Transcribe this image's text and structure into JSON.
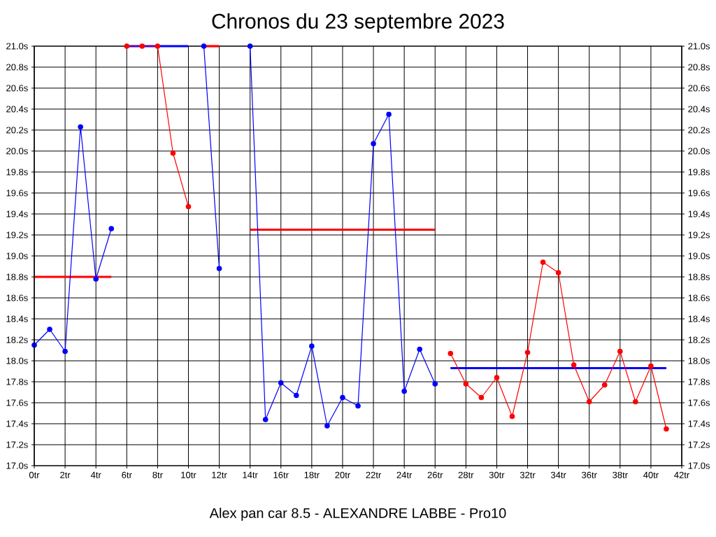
{
  "chart_data": {
    "type": "line",
    "title": "Chronos du 23 septembre 2023",
    "xlabel": "Alex pan car 8.5 - ALEXANDRE LABBE - Pro10",
    "xlim": [
      0,
      42
    ],
    "xticks": [
      {
        "value": 0,
        "label": "0tr"
      },
      {
        "value": 2,
        "label": "2tr"
      },
      {
        "value": 4,
        "label": "4tr"
      },
      {
        "value": 6,
        "label": "6tr"
      },
      {
        "value": 8,
        "label": "8tr"
      },
      {
        "value": 10,
        "label": "10tr"
      },
      {
        "value": 12,
        "label": "12tr"
      },
      {
        "value": 14,
        "label": "14tr"
      },
      {
        "value": 16,
        "label": "16tr"
      },
      {
        "value": 18,
        "label": "18tr"
      },
      {
        "value": 20,
        "label": "20tr"
      },
      {
        "value": 22,
        "label": "22tr"
      },
      {
        "value": 24,
        "label": "24tr"
      },
      {
        "value": 26,
        "label": "26tr"
      },
      {
        "value": 28,
        "label": "28tr"
      },
      {
        "value": 30,
        "label": "30tr"
      },
      {
        "value": 32,
        "label": "32tr"
      },
      {
        "value": 34,
        "label": "34tr"
      },
      {
        "value": 36,
        "label": "36tr"
      },
      {
        "value": 38,
        "label": "38tr"
      },
      {
        "value": 40,
        "label": "40tr"
      },
      {
        "value": 42,
        "label": "42tr"
      }
    ],
    "ylim": [
      17,
      21
    ],
    "yticks": [
      {
        "value": 17,
        "label": "17.0s"
      },
      {
        "value": 17.2,
        "label": "17.2s"
      },
      {
        "value": 17.4,
        "label": "17.4s"
      },
      {
        "value": 17.6,
        "label": "17.6s"
      },
      {
        "value": 17.8,
        "label": "17.8s"
      },
      {
        "value": 18,
        "label": "18.0s"
      },
      {
        "value": 18.2,
        "label": "18.2s"
      },
      {
        "value": 18.4,
        "label": "18.4s"
      },
      {
        "value": 18.6,
        "label": "18.6s"
      },
      {
        "value": 18.8,
        "label": "18.8s"
      },
      {
        "value": 19,
        "label": "19.0s"
      },
      {
        "value": 19.2,
        "label": "19.2s"
      },
      {
        "value": 19.4,
        "label": "19.4s"
      },
      {
        "value": 19.6,
        "label": "19.6s"
      },
      {
        "value": 19.8,
        "label": "19.8s"
      },
      {
        "value": 20,
        "label": "20.0s"
      },
      {
        "value": 20.2,
        "label": "20.2s"
      },
      {
        "value": 20.4,
        "label": "20.4s"
      },
      {
        "value": 20.6,
        "label": "20.6s"
      },
      {
        "value": 20.8,
        "label": "20.8s"
      },
      {
        "value": 21,
        "label": "21.0s"
      }
    ],
    "y2lim": [
      17,
      21
    ],
    "y2ticks": [
      {
        "value": 17,
        "label": "17.0s"
      },
      {
        "value": 17.2,
        "label": "17.2s"
      },
      {
        "value": 17.4,
        "label": "17.4s"
      },
      {
        "value": 17.6,
        "label": "17.6s"
      },
      {
        "value": 17.8,
        "label": "17.8s"
      },
      {
        "value": 18,
        "label": "18.0s"
      },
      {
        "value": 18.2,
        "label": "18.2s"
      },
      {
        "value": 18.4,
        "label": "18.4s"
      },
      {
        "value": 18.6,
        "label": "18.6s"
      },
      {
        "value": 18.8,
        "label": "18.8s"
      },
      {
        "value": 19,
        "label": "19.0s"
      },
      {
        "value": 19.2,
        "label": "19.2s"
      },
      {
        "value": 19.4,
        "label": "19.4s"
      },
      {
        "value": 19.6,
        "label": "19.6s"
      },
      {
        "value": 19.8,
        "label": "19.8s"
      },
      {
        "value": 20,
        "label": "20.0s"
      },
      {
        "value": 20.2,
        "label": "20.2s"
      },
      {
        "value": 20.4,
        "label": "20.4s"
      },
      {
        "value": 20.6,
        "label": "20.6s"
      },
      {
        "value": 20.8,
        "label": "20.8s"
      },
      {
        "value": 21,
        "label": "21.0s"
      }
    ],
    "grid": true,
    "marker": "circle",
    "line_style": "solid",
    "series": [
      {
        "color": "#ff0000",
        "x": [
          0,
          5
        ],
        "values": [
          18.8,
          18.8
        ],
        "marker": "none"
      },
      {
        "color": "#0000ff",
        "x": [
          0,
          1,
          2,
          3,
          4,
          5
        ],
        "values": [
          18.15,
          18.3,
          18.09,
          20.23,
          18.78,
          19.26
        ]
      },
      {
        "color": "#0000ff",
        "x": [
          6,
          10
        ],
        "values": [
          21.0,
          21.0
        ],
        "marker": "none"
      },
      {
        "color": "#ff0000",
        "x": [
          6,
          7,
          8,
          9,
          10
        ],
        "values": [
          21.0,
          21.0,
          21.0,
          19.98,
          19.47
        ]
      },
      {
        "color": "#ff0000",
        "x": [
          11,
          12
        ],
        "values": [
          21.0,
          21.0
        ],
        "marker": "none"
      },
      {
        "color": "#0000ff",
        "x": [
          11,
          12
        ],
        "values": [
          21.0,
          18.88
        ]
      },
      {
        "color": "#ff0000",
        "x": [
          14,
          26
        ],
        "values": [
          19.25,
          19.25
        ],
        "marker": "none"
      },
      {
        "color": "#0000ff",
        "x": [
          14,
          15,
          16,
          17,
          18,
          19,
          20,
          21,
          22,
          23,
          24,
          25,
          26
        ],
        "values": [
          21.0,
          17.44,
          17.79,
          17.67,
          18.14,
          17.38,
          17.65,
          17.57,
          20.07,
          20.35,
          17.71,
          18.11,
          17.78
        ]
      },
      {
        "color": "#0000ff",
        "x": [
          27,
          41
        ],
        "values": [
          17.93,
          17.93
        ],
        "marker": "none"
      },
      {
        "color": "#ff0000",
        "x": [
          27,
          28,
          29,
          30,
          31,
          32,
          33,
          34,
          35,
          36,
          37,
          38,
          39,
          40,
          41
        ],
        "values": [
          18.07,
          17.78,
          17.65,
          17.84,
          17.47,
          18.08,
          18.94,
          18.84,
          17.96,
          17.61,
          17.77,
          18.09,
          17.61,
          17.95,
          17.35
        ]
      }
    ]
  }
}
